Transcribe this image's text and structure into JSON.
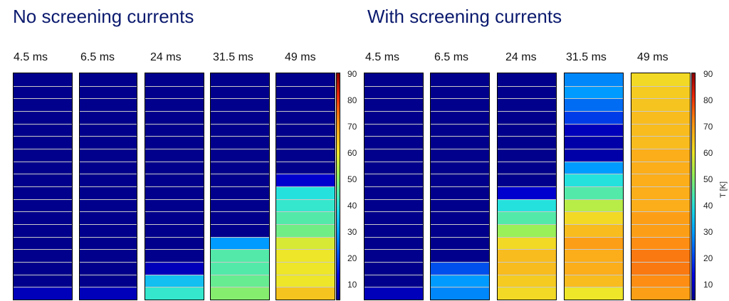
{
  "chart_data": [
    {
      "type": "heatmap",
      "title": "No screening currents",
      "panels": [
        {
          "label": "4.5 ms",
          "layers_top_to_bottom": [
            5,
            5,
            5,
            5,
            5,
            5,
            5,
            5,
            5,
            5,
            5,
            5,
            5,
            5,
            5,
            5,
            5,
            10
          ]
        },
        {
          "label": "6.5 ms",
          "layers_top_to_bottom": [
            5,
            5,
            5,
            5,
            5,
            5,
            5,
            5,
            5,
            5,
            5,
            5,
            5,
            5,
            5,
            5,
            5,
            10
          ]
        },
        {
          "label": "24 ms",
          "layers_top_to_bottom": [
            5,
            5,
            5,
            5,
            5,
            5,
            5,
            5,
            5,
            5,
            5,
            5,
            5,
            5,
            5,
            10,
            35,
            42
          ]
        },
        {
          "label": "31.5 ms",
          "layers_top_to_bottom": [
            5,
            5,
            5,
            5,
            5,
            5,
            5,
            5,
            5,
            5,
            5,
            5,
            5,
            30,
            45,
            45,
            47,
            50
          ]
        },
        {
          "label": "49 ms",
          "layers_top_to_bottom": [
            5,
            5,
            5,
            5,
            5,
            5,
            5,
            5,
            12,
            40,
            42,
            45,
            48,
            58,
            60,
            60,
            60,
            65
          ]
        }
      ]
    },
    {
      "type": "heatmap",
      "title": "With screening currents",
      "panels": [
        {
          "label": "4.5 ms",
          "layers_top_to_bottom": [
            5,
            5,
            5,
            5,
            5,
            5,
            5,
            5,
            5,
            5,
            5,
            5,
            5,
            5,
            5,
            5,
            5,
            10
          ]
        },
        {
          "label": "6.5 ms",
          "layers_top_to_bottom": [
            5,
            5,
            5,
            5,
            5,
            5,
            5,
            5,
            5,
            5,
            5,
            5,
            5,
            5,
            5,
            22,
            30,
            28
          ]
        },
        {
          "label": "24 ms",
          "layers_top_to_bottom": [
            5,
            5,
            5,
            5,
            5,
            5,
            5,
            5,
            5,
            12,
            40,
            45,
            52,
            62,
            66,
            66,
            64,
            62
          ]
        },
        {
          "label": "31.5 ms",
          "layers_top_to_bottom": [
            28,
            30,
            25,
            20,
            10,
            8,
            8,
            30,
            40,
            45,
            55,
            62,
            66,
            70,
            68,
            68,
            66,
            60
          ]
        },
        {
          "label": "49 ms",
          "layers_top_to_bottom": [
            62,
            64,
            65,
            66,
            66,
            66,
            68,
            68,
            68,
            68,
            68,
            70,
            70,
            72,
            74,
            74,
            72,
            70
          ]
        }
      ]
    }
  ],
  "colorbar": {
    "label": "T [K]",
    "range": [
      5,
      90
    ],
    "ticks": [
      "90",
      "80",
      "70",
      "60",
      "50",
      "40",
      "30",
      "20",
      "10"
    ],
    "clipped_ticks": [
      "90",
      "80",
      "70",
      "60",
      "50",
      "40",
      "30",
      "20",
      "10"
    ]
  }
}
